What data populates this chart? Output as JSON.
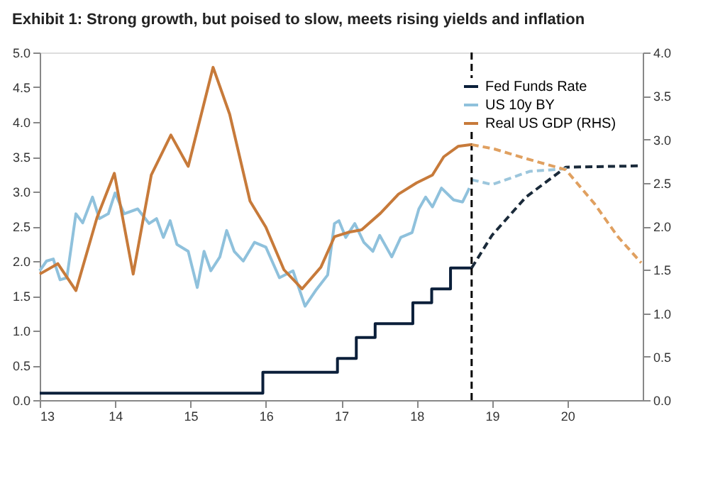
{
  "chart_data": {
    "type": "line",
    "title": "Exhibit 1: Strong growth, but poised to slow, meets rising yields and inflation",
    "xlim": [
      13,
      21
    ],
    "xticks": [
      13,
      14,
      15,
      16,
      17,
      18,
      19,
      20
    ],
    "ylim": [
      0,
      5
    ],
    "yticks": [
      {
        "value": 0,
        "label": "0.0"
      },
      0.5,
      {
        "value": 1,
        "label": "1.0"
      },
      1.5,
      {
        "value": 2,
        "label": "2.0"
      },
      2.5,
      {
        "value": 3,
        "label": "3.0"
      },
      3.5,
      {
        "value": 4,
        "label": "4.0"
      },
      4.5,
      {
        "value": 5,
        "label": "5.0"
      }
    ],
    "y2lim": [
      0,
      4
    ],
    "y2ticks": [
      {
        "value": 0,
        "label": "0.0"
      },
      0.5,
      {
        "value": 1,
        "label": "1.0"
      },
      1.5,
      {
        "value": 2,
        "label": "2.0"
      },
      2.5,
      {
        "value": 3,
        "label": "3.0"
      },
      3.5,
      {
        "value": 4,
        "label": "4.0"
      }
    ],
    "grid": false,
    "legend": "top right",
    "marker": "none",
    "ref_lines": [
      {
        "axis": "x",
        "value": 18.73,
        "color": "#000000",
        "line_style": "dashed"
      }
    ],
    "series": [
      {
        "name": "Fed Funds Rate",
        "type": "step",
        "color": "#0b1f3a",
        "line_style": "solid",
        "x": [
          13,
          15.96,
          16.95,
          17.2,
          17.45,
          17.95,
          18.2,
          18.45,
          18.73
        ],
        "values": [
          0.1,
          0.4,
          0.6,
          0.9,
          1.1,
          1.4,
          1.6,
          1.9,
          1.9
        ]
      },
      {
        "type": "line",
        "color": "#1a2a3a",
        "line_style": "dashed",
        "x": [
          18.73,
          19.0,
          19.45,
          19.98,
          20.98
        ],
        "values": [
          1.9,
          2.37,
          2.92,
          3.35,
          3.37
        ]
      },
      {
        "name": "US 10y BY",
        "type": "line",
        "color": "#8fc1dc",
        "line_style": "solid",
        "x": [
          13.0,
          13.09,
          13.18,
          13.27,
          13.36,
          13.48,
          13.57,
          13.7,
          13.79,
          13.91,
          14.0,
          14.12,
          14.3,
          14.45,
          14.55,
          14.64,
          14.73,
          14.82,
          14.97,
          15.09,
          15.18,
          15.27,
          15.39,
          15.48,
          15.58,
          15.7,
          15.85,
          16.0,
          16.18,
          16.36,
          16.52,
          16.67,
          16.82,
          16.91,
          16.97,
          17.06,
          17.18,
          17.3,
          17.42,
          17.51,
          17.67,
          17.79,
          17.94,
          18.03,
          18.12,
          18.21,
          18.33,
          18.49,
          18.61,
          18.7
        ],
        "values": [
          1.86,
          2.0,
          2.03,
          1.73,
          1.76,
          2.68,
          2.55,
          2.92,
          2.61,
          2.68,
          2.98,
          2.68,
          2.75,
          2.54,
          2.61,
          2.34,
          2.58,
          2.24,
          2.14,
          1.62,
          2.14,
          1.86,
          2.06,
          2.44,
          2.14,
          2.0,
          2.27,
          2.2,
          1.76,
          1.86,
          1.35,
          1.59,
          1.8,
          2.54,
          2.58,
          2.34,
          2.54,
          2.27,
          2.14,
          2.37,
          2.06,
          2.34,
          2.41,
          2.75,
          2.92,
          2.78,
          3.05,
          2.88,
          2.85,
          3.05
        ]
      },
      {
        "type": "line",
        "color": "#9cc6dc",
        "line_style": "dashed",
        "x": [
          18.73,
          19.0,
          19.5,
          20.0
        ],
        "values": [
          3.17,
          3.1,
          3.29,
          3.33
        ]
      },
      {
        "name": "Real US GDP (RHS)",
        "type": "line",
        "axis": "y2",
        "color": "#c77a3a",
        "line_style": "solid",
        "x": [
          13.0,
          13.24,
          13.48,
          13.76,
          13.99,
          14.24,
          14.48,
          14.74,
          14.97,
          15.3,
          15.52,
          15.79,
          16.0,
          16.24,
          16.48,
          16.73,
          16.91,
          17.09,
          17.27,
          17.52,
          17.76,
          18.0,
          18.21,
          18.36,
          18.55,
          18.73
        ],
        "values": [
          1.45,
          1.57,
          1.26,
          2.1,
          2.61,
          1.45,
          2.59,
          3.05,
          2.69,
          3.83,
          3.29,
          2.29,
          1.99,
          1.5,
          1.28,
          1.53,
          1.88,
          1.93,
          1.96,
          2.15,
          2.37,
          2.5,
          2.59,
          2.8,
          2.92,
          2.94
        ]
      },
      {
        "type": "line",
        "axis": "y2",
        "color": "#e0a060",
        "line_style": "dashed",
        "x": [
          18.73,
          19.03,
          19.45,
          19.98,
          20.36,
          20.67,
          20.98
        ],
        "values": [
          2.94,
          2.89,
          2.78,
          2.65,
          2.26,
          1.88,
          1.58
        ]
      }
    ]
  }
}
